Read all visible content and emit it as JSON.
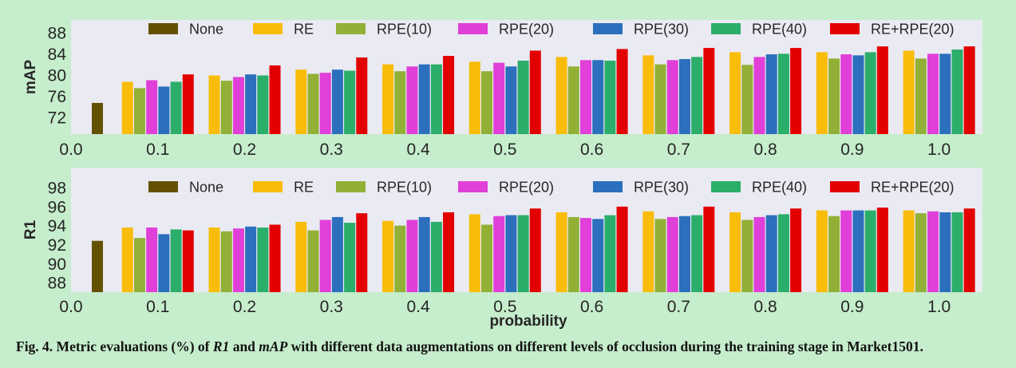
{
  "caption": {
    "prefix": "Fig. 4. Metric evaluations (%) of ",
    "metric1": "R1",
    "mid": " and ",
    "metric2": "mAP",
    "suffix": " with different data augmentations on different levels of occlusion during the training stage in Market1501."
  },
  "colors": {
    "None": "#645100",
    "RE": "#f9bc08",
    "RPE(10)": "#92b036",
    "RPE(20)": "#e03fd8",
    "RPE(30)": "#2b6fbd",
    "RPE(40)": "#2bae6a",
    "RE+RPE(20)": "#e30000",
    "plot_bg": "#eaeaf2",
    "page_bg": "#c6edcc"
  },
  "chart_data": [
    {
      "type": "bar",
      "title": "",
      "xlabel": "",
      "ylabel": "mAP",
      "xlim": [
        0.0,
        1.05
      ],
      "ylim": [
        68.8,
        90.4
      ],
      "yticks": [
        72,
        76,
        80,
        84,
        88
      ],
      "xticks": [
        "0.0",
        "0.1",
        "0.2",
        "0.3",
        "0.4",
        "0.5",
        "0.6",
        "0.7",
        "0.8",
        "0.9",
        "1.0"
      ],
      "grid": false,
      "legend": {
        "placement": "top",
        "entries": [
          "None",
          "RE",
          "RPE(10)",
          "RPE(20)",
          "RPE(30)",
          "RPE(40)",
          "RE+RPE(20)"
        ]
      },
      "baseline": {
        "name": "None",
        "x": 0.0,
        "value": 74.7
      },
      "categories": [
        "0.1",
        "0.2",
        "0.3",
        "0.4",
        "0.5",
        "0.6",
        "0.7",
        "0.8",
        "0.9",
        "1.0"
      ],
      "series": [
        {
          "name": "RE",
          "values": [
            78.7,
            79.9,
            81.0,
            82.0,
            82.5,
            83.4,
            83.7,
            84.3,
            84.3,
            84.6
          ]
        },
        {
          "name": "RPE(10)",
          "values": [
            77.5,
            78.9,
            80.2,
            80.7,
            80.7,
            81.6,
            82.0,
            81.9,
            83.1,
            83.1
          ]
        },
        {
          "name": "RPE(20)",
          "values": [
            79.0,
            79.6,
            80.4,
            81.6,
            82.3,
            82.8,
            82.8,
            83.4,
            83.9,
            84.0
          ]
        },
        {
          "name": "RPE(30)",
          "values": [
            77.8,
            80.1,
            81.0,
            82.0,
            81.6,
            82.8,
            83.0,
            83.9,
            83.7,
            84.0
          ]
        },
        {
          "name": "RPE(40)",
          "values": [
            78.7,
            79.9,
            80.8,
            82.0,
            82.7,
            82.7,
            83.4,
            84.0,
            84.3,
            84.8
          ]
        },
        {
          "name": "RE+RPE(20)",
          "values": [
            80.1,
            81.8,
            83.3,
            83.6,
            84.6,
            84.9,
            85.1,
            85.1,
            85.4,
            85.4
          ]
        }
      ]
    },
    {
      "type": "bar",
      "title": "",
      "xlabel": "probability",
      "ylabel": "R1",
      "xlim": [
        0.0,
        1.05
      ],
      "ylim": [
        87.0,
        100.1
      ],
      "yticks": [
        88,
        90,
        92,
        94,
        96,
        98
      ],
      "xticks": [
        "0.0",
        "0.1",
        "0.2",
        "0.3",
        "0.4",
        "0.5",
        "0.6",
        "0.7",
        "0.8",
        "0.9",
        "1.0"
      ],
      "grid": false,
      "legend": {
        "placement": "top",
        "entries": [
          "None",
          "RE",
          "RPE(10)",
          "RPE(20)",
          "RPE(30)",
          "RPE(40)",
          "RE+RPE(20)"
        ]
      },
      "baseline": {
        "name": "None",
        "x": 0.0,
        "value": 92.4
      },
      "categories": [
        "0.1",
        "0.2",
        "0.3",
        "0.4",
        "0.5",
        "0.6",
        "0.7",
        "0.8",
        "0.9",
        "1.0"
      ],
      "series": [
        {
          "name": "RE",
          "values": [
            93.8,
            93.8,
            94.4,
            94.5,
            95.2,
            95.4,
            95.5,
            95.4,
            95.6,
            95.6
          ]
        },
        {
          "name": "RPE(10)",
          "values": [
            92.7,
            93.4,
            93.5,
            94.0,
            94.1,
            94.9,
            94.7,
            94.6,
            95.0,
            95.3
          ]
        },
        {
          "name": "RPE(20)",
          "values": [
            93.8,
            93.7,
            94.6,
            94.6,
            95.0,
            94.8,
            94.9,
            94.9,
            95.6,
            95.5
          ]
        },
        {
          "name": "RPE(30)",
          "values": [
            93.1,
            93.9,
            94.9,
            94.9,
            95.1,
            94.7,
            95.0,
            95.1,
            95.6,
            95.4
          ]
        },
        {
          "name": "RPE(40)",
          "values": [
            93.6,
            93.8,
            94.3,
            94.4,
            95.1,
            95.1,
            95.1,
            95.2,
            95.6,
            95.4
          ]
        },
        {
          "name": "RE+RPE(20)",
          "values": [
            93.5,
            94.1,
            95.3,
            95.4,
            95.8,
            96.0,
            96.0,
            95.8,
            95.9,
            95.8
          ]
        }
      ]
    }
  ]
}
